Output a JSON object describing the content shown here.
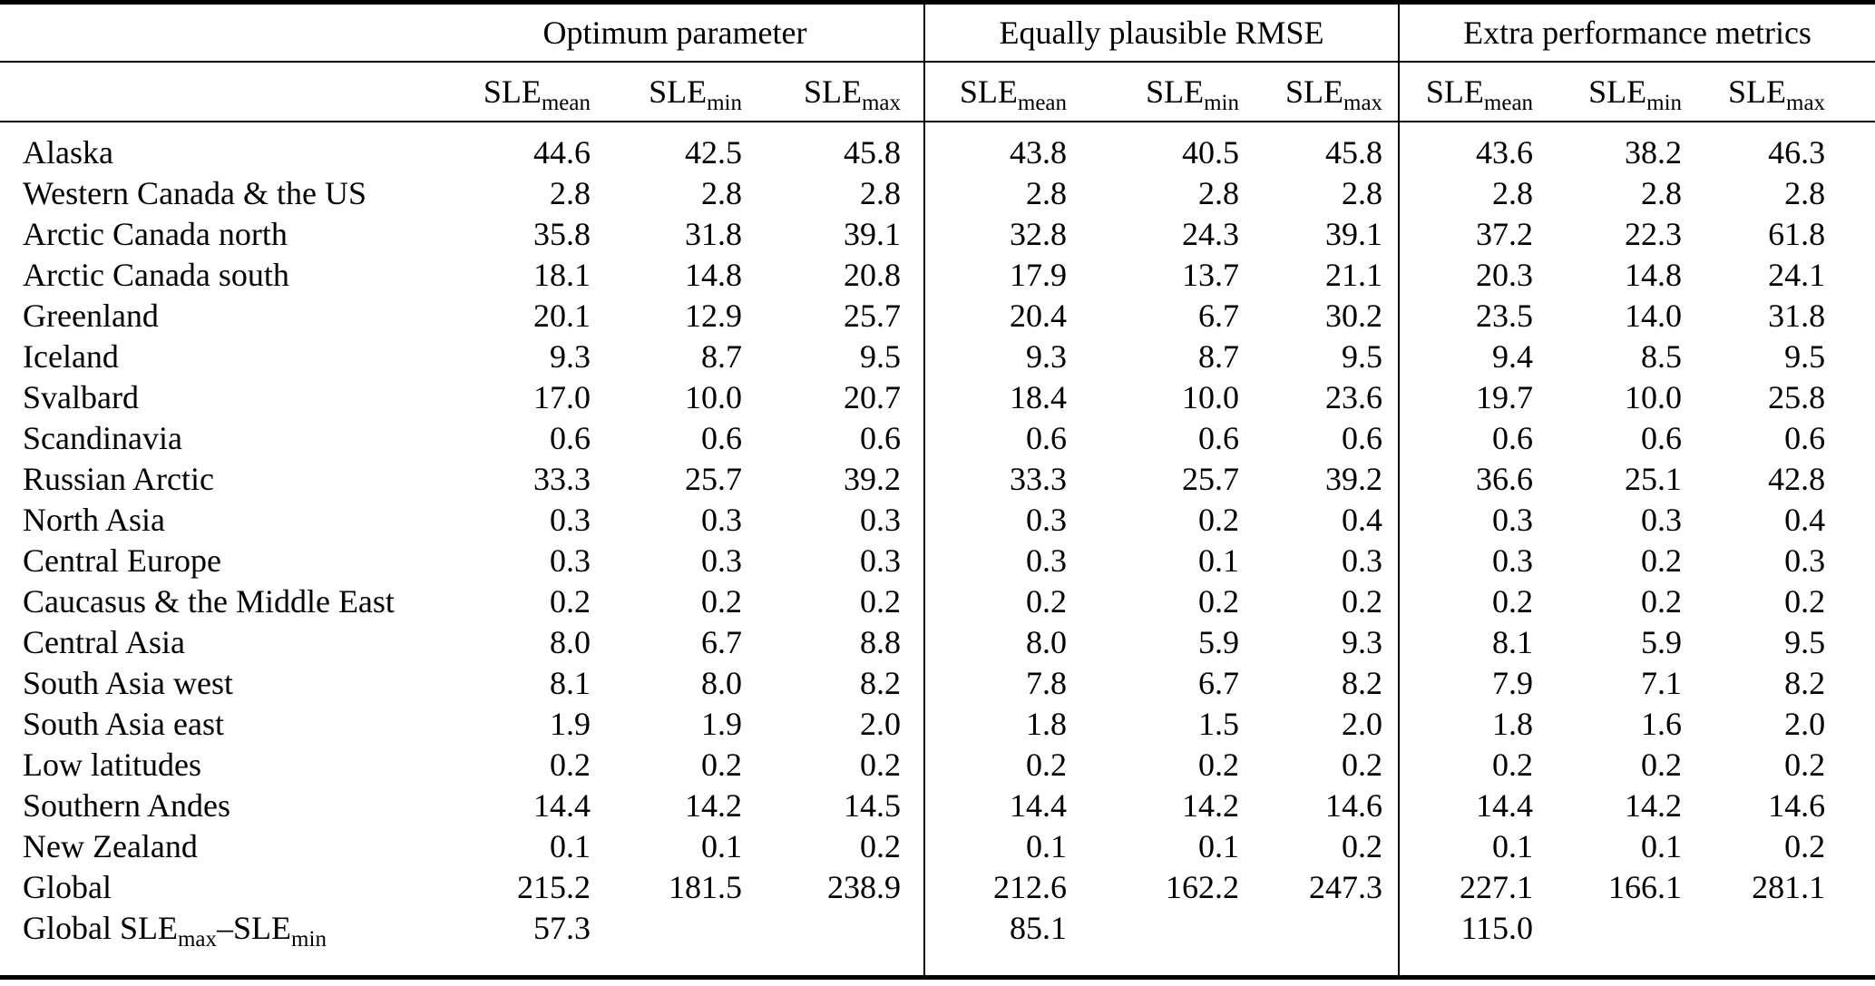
{
  "table": {
    "sle_base": "SLE",
    "sle_subs": [
      "mean",
      "min",
      "max"
    ],
    "groups": [
      {
        "label": "Optimum parameter"
      },
      {
        "label": "Equally plausible RMSE"
      },
      {
        "label": "Extra performance metrics"
      }
    ],
    "rows": [
      {
        "label": "Alaska",
        "values": [
          "44.6",
          "42.5",
          "45.8",
          "43.8",
          "40.5",
          "45.8",
          "43.6",
          "38.2",
          "46.3"
        ]
      },
      {
        "label": "Western Canada & the US",
        "values": [
          "2.8",
          "2.8",
          "2.8",
          "2.8",
          "2.8",
          "2.8",
          "2.8",
          "2.8",
          "2.8"
        ]
      },
      {
        "label": "Arctic Canada north",
        "values": [
          "35.8",
          "31.8",
          "39.1",
          "32.8",
          "24.3",
          "39.1",
          "37.2",
          "22.3",
          "61.8"
        ]
      },
      {
        "label": "Arctic Canada south",
        "values": [
          "18.1",
          "14.8",
          "20.8",
          "17.9",
          "13.7",
          "21.1",
          "20.3",
          "14.8",
          "24.1"
        ]
      },
      {
        "label": "Greenland",
        "values": [
          "20.1",
          "12.9",
          "25.7",
          "20.4",
          "6.7",
          "30.2",
          "23.5",
          "14.0",
          "31.8"
        ]
      },
      {
        "label": "Iceland",
        "values": [
          "9.3",
          "8.7",
          "9.5",
          "9.3",
          "8.7",
          "9.5",
          "9.4",
          "8.5",
          "9.5"
        ]
      },
      {
        "label": "Svalbard",
        "values": [
          "17.0",
          "10.0",
          "20.7",
          "18.4",
          "10.0",
          "23.6",
          "19.7",
          "10.0",
          "25.8"
        ]
      },
      {
        "label": "Scandinavia",
        "values": [
          "0.6",
          "0.6",
          "0.6",
          "0.6",
          "0.6",
          "0.6",
          "0.6",
          "0.6",
          "0.6"
        ]
      },
      {
        "label": "Russian Arctic",
        "values": [
          "33.3",
          "25.7",
          "39.2",
          "33.3",
          "25.7",
          "39.2",
          "36.6",
          "25.1",
          "42.8"
        ]
      },
      {
        "label": "North Asia",
        "values": [
          "0.3",
          "0.3",
          "0.3",
          "0.3",
          "0.2",
          "0.4",
          "0.3",
          "0.3",
          "0.4"
        ]
      },
      {
        "label": "Central Europe",
        "values": [
          "0.3",
          "0.3",
          "0.3",
          "0.3",
          "0.1",
          "0.3",
          "0.3",
          "0.2",
          "0.3"
        ]
      },
      {
        "label": "Caucasus & the Middle East",
        "values": [
          "0.2",
          "0.2",
          "0.2",
          "0.2",
          "0.2",
          "0.2",
          "0.2",
          "0.2",
          "0.2"
        ]
      },
      {
        "label": "Central Asia",
        "values": [
          "8.0",
          "6.7",
          "8.8",
          "8.0",
          "5.9",
          "9.3",
          "8.1",
          "5.9",
          "9.5"
        ]
      },
      {
        "label": "South Asia west",
        "values": [
          "8.1",
          "8.0",
          "8.2",
          "7.8",
          "6.7",
          "8.2",
          "7.9",
          "7.1",
          "8.2"
        ]
      },
      {
        "label": "South Asia east",
        "values": [
          "1.9",
          "1.9",
          "2.0",
          "1.8",
          "1.5",
          "2.0",
          "1.8",
          "1.6",
          "2.0"
        ]
      },
      {
        "label": "Low latitudes",
        "values": [
          "0.2",
          "0.2",
          "0.2",
          "0.2",
          "0.2",
          "0.2",
          "0.2",
          "0.2",
          "0.2"
        ]
      },
      {
        "label": "Southern Andes",
        "values": [
          "14.4",
          "14.2",
          "14.5",
          "14.4",
          "14.2",
          "14.6",
          "14.4",
          "14.2",
          "14.6"
        ]
      },
      {
        "label": "New Zealand",
        "values": [
          "0.1",
          "0.1",
          "0.2",
          "0.1",
          "0.1",
          "0.2",
          "0.1",
          "0.1",
          "0.2"
        ]
      },
      {
        "label": "Global",
        "values": [
          "215.2",
          "181.5",
          "238.9",
          "212.6",
          "162.2",
          "247.3",
          "227.1",
          "166.1",
          "281.1"
        ]
      },
      {
        "label": "Global SLEmax–SLEmin",
        "label_parts": [
          {
            "text": "Global SLE"
          },
          {
            "sub": "max"
          },
          {
            "text": "–SLE"
          },
          {
            "sub": "min"
          }
        ],
        "values": [
          "57.3",
          "",
          "",
          "85.1",
          "",
          "",
          "115.0",
          "",
          ""
        ]
      }
    ]
  }
}
